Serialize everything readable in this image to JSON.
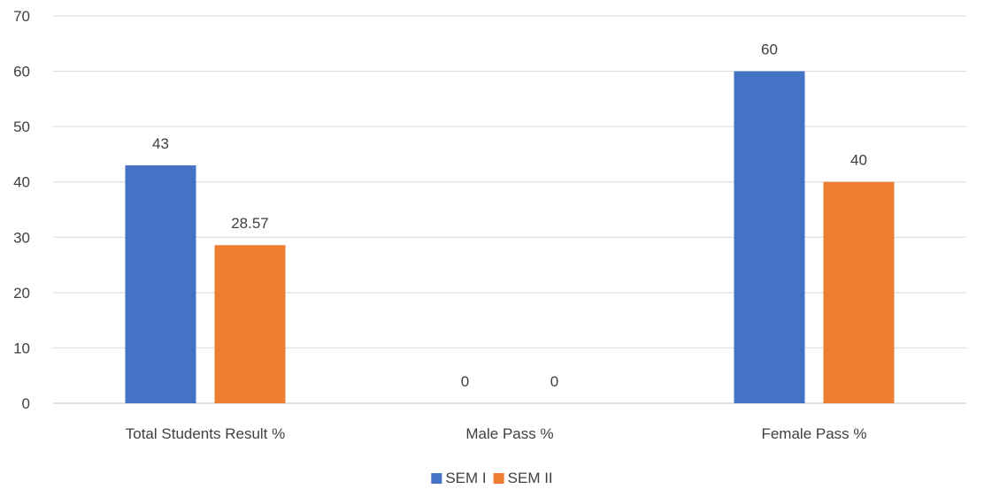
{
  "chart_data": {
    "type": "bar",
    "categories": [
      "Total Students Result %",
      "Male Pass %",
      "Female Pass %"
    ],
    "series": [
      {
        "name": "SEM I",
        "values": [
          43,
          0,
          60
        ],
        "labels": [
          "43",
          "0",
          "60"
        ],
        "color": "#4472C4"
      },
      {
        "name": "SEM II",
        "values": [
          28.57,
          0,
          40
        ],
        "labels": [
          "28.57",
          "0",
          "40"
        ],
        "color": "#ED7D31"
      }
    ],
    "ylim": [
      0,
      70
    ],
    "yticks": [
      "0",
      "10",
      "20",
      "30",
      "40",
      "50",
      "60",
      "70"
    ],
    "grid": true,
    "legend": "bottom-center",
    "title": "",
    "xlabel": "",
    "ylabel": ""
  }
}
